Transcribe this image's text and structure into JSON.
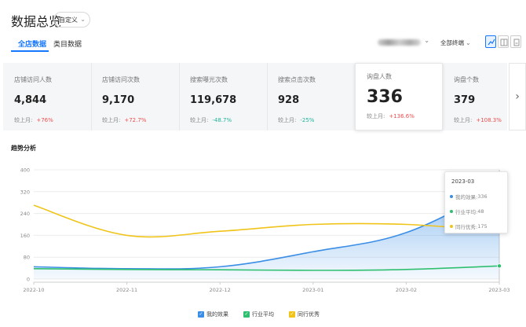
{
  "header": {
    "title": "数据总览",
    "period_select": "自定义",
    "tabs": [
      {
        "label": "全店数据",
        "active": true
      },
      {
        "label": "类目数据",
        "active": false
      }
    ],
    "channel_select": "全部终端",
    "view_buttons": [
      "line-chart-icon",
      "table-icon",
      "export-icon"
    ]
  },
  "metrics": [
    {
      "label": "店铺访问人数",
      "value": "4,844",
      "compare_label": "较上月:",
      "change": "+76%",
      "trend": "up"
    },
    {
      "label": "店铺访问次数",
      "value": "9,170",
      "compare_label": "较上月:",
      "change": "+72.7%",
      "trend": "up"
    },
    {
      "label": "搜索曝光次数",
      "value": "119,678",
      "compare_label": "较上月:",
      "change": "-48.7%",
      "trend": "down"
    },
    {
      "label": "搜索点击次数",
      "value": "928",
      "compare_label": "较上月:",
      "change": "-25%",
      "trend": "down"
    },
    {
      "label": "询盘人数",
      "value": "336",
      "compare_label": "较上月:",
      "change": "+136.6%",
      "trend": "up",
      "active": true
    },
    {
      "label": "询盘个数",
      "value": "379",
      "compare_label": "较上月:",
      "change": "+108.3%",
      "trend": "up"
    }
  ],
  "chart_title": "趋势分析",
  "chart_data": {
    "type": "line",
    "title": "趋势分析",
    "x": [
      "2022-10",
      "2022-11",
      "2022-12",
      "2023-01",
      "2023-02",
      "2023-03"
    ],
    "ylim": [
      0,
      400
    ],
    "yticks": [
      "400",
      "320",
      "240",
      "160",
      "80",
      "0"
    ],
    "grid": true,
    "legend_position": "bottom",
    "series": [
      {
        "name": "我的效果",
        "color": "#3a8ee6",
        "values": [
          45,
          38,
          45,
          100,
          170,
          336
        ],
        "area": true
      },
      {
        "name": "行业平均",
        "color": "#2fbf71",
        "values": [
          38,
          35,
          34,
          32,
          35,
          48
        ]
      },
      {
        "name": "同行优秀",
        "color": "#f0c419",
        "values": [
          270,
          160,
          175,
          200,
          200,
          175
        ]
      }
    ]
  },
  "tooltip": {
    "title": "2023-03",
    "rows": [
      {
        "label": "我的效果: ",
        "value": "336",
        "color": "#3a8ee6"
      },
      {
        "label": "行业平均: ",
        "value": "48",
        "color": "#2fbf71"
      },
      {
        "label": "同行优秀: ",
        "value": "175",
        "color": "#f0c419"
      }
    ]
  },
  "legend": [
    {
      "label": "我的效果",
      "color": "#3a8ee6"
    },
    {
      "label": "行业平均",
      "color": "#2fbf71"
    },
    {
      "label": "同行优秀",
      "color": "#f0c419"
    }
  ]
}
